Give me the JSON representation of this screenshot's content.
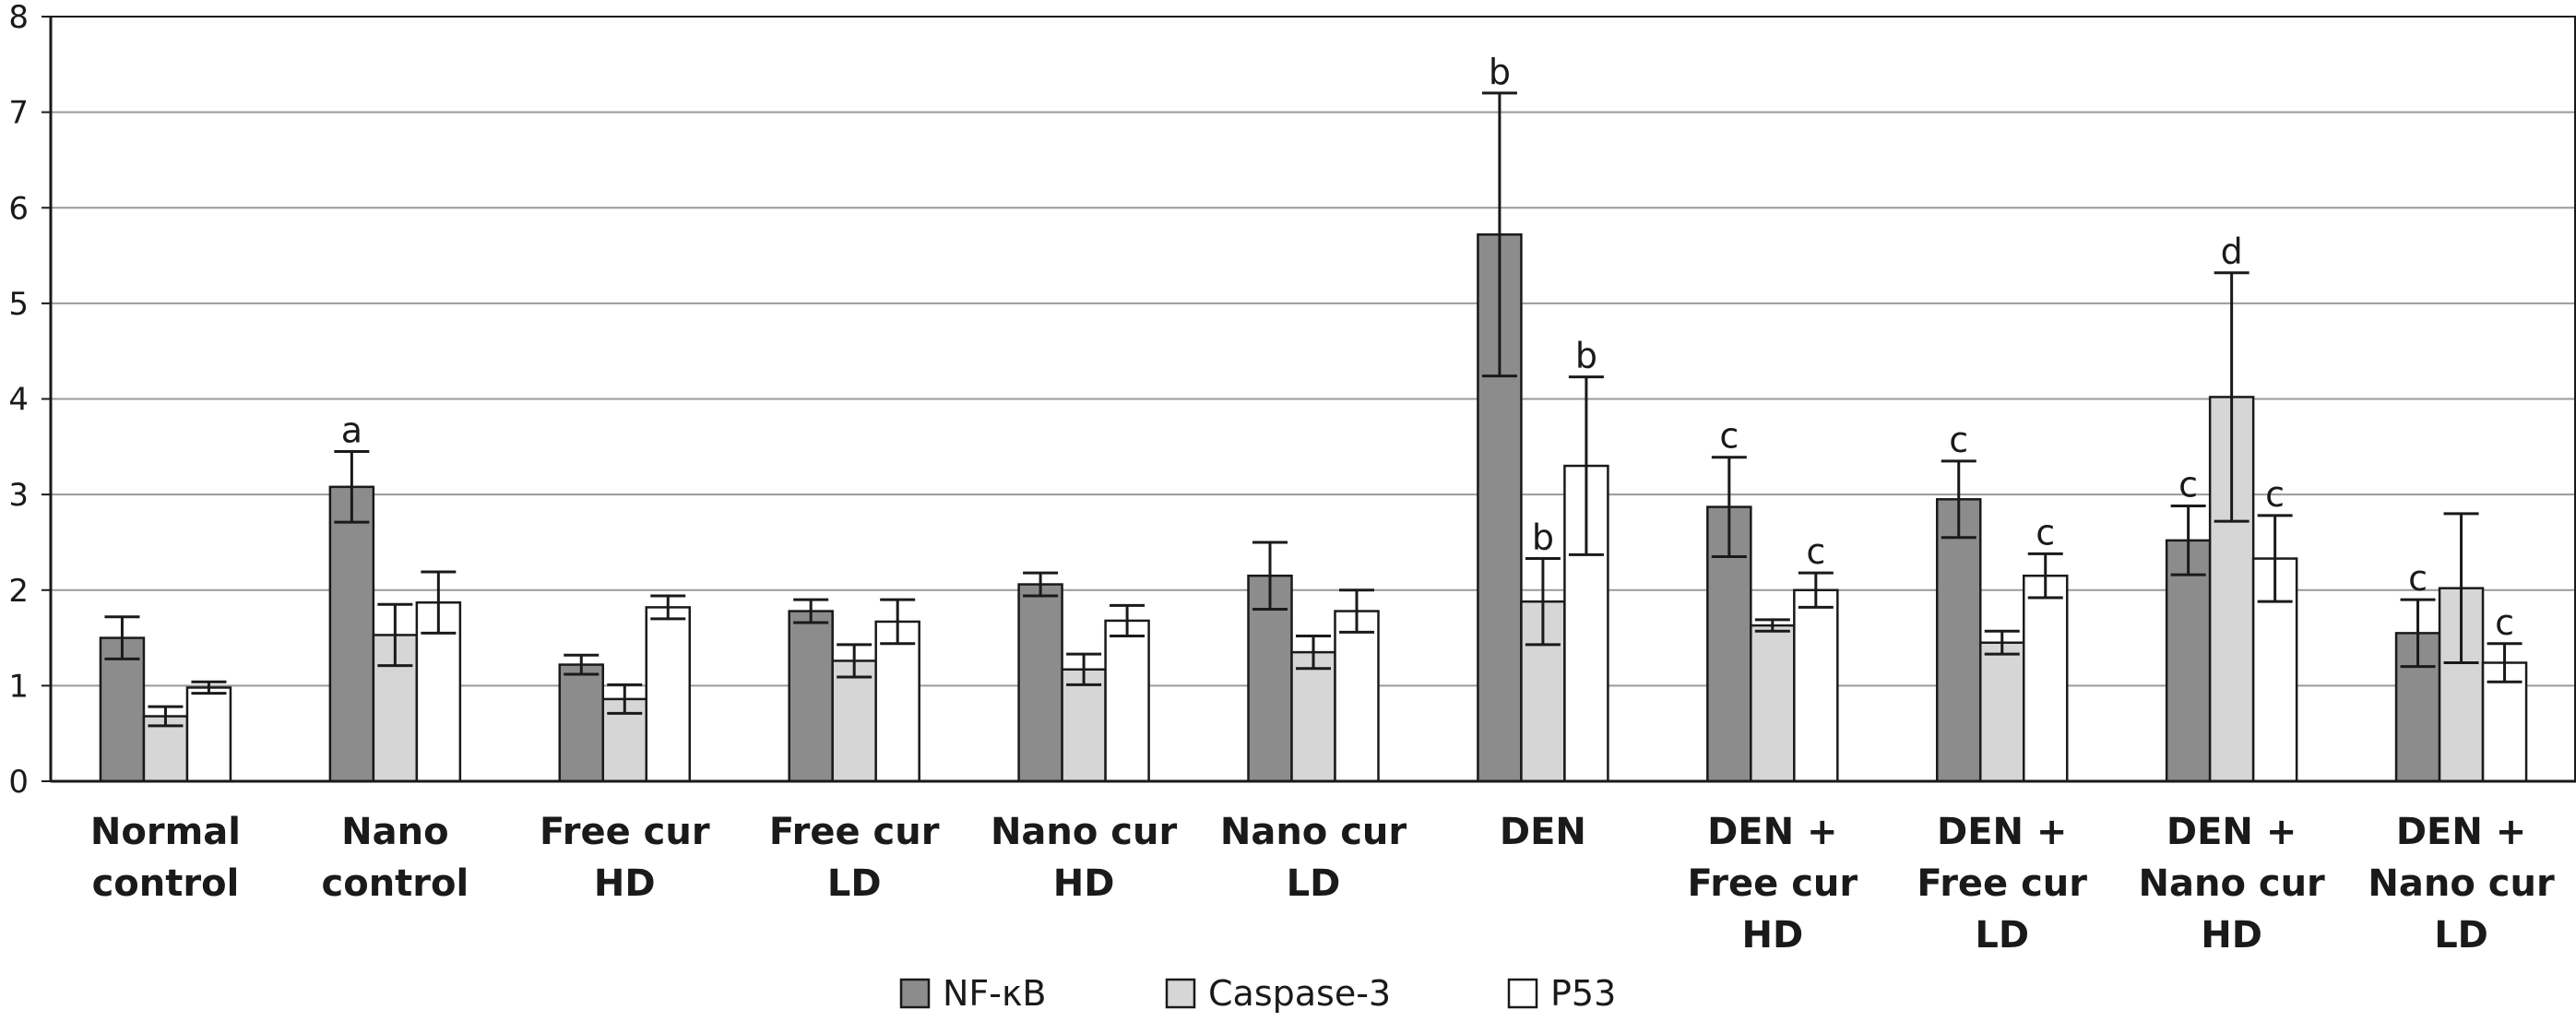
{
  "chart_data": {
    "type": "bar",
    "categories": [
      [
        "Normal",
        "control"
      ],
      [
        "Nano",
        "control"
      ],
      [
        "Free cur",
        "HD"
      ],
      [
        "Free cur",
        "LD"
      ],
      [
        "Nano cur",
        "HD"
      ],
      [
        "Nano cur",
        "LD"
      ],
      [
        "DEN"
      ],
      [
        "DEN +",
        "Free cur",
        "HD"
      ],
      [
        "DEN +",
        "Free cur",
        "LD"
      ],
      [
        "DEN +",
        "Nano cur",
        "HD"
      ],
      [
        "DEN +",
        "Nano cur",
        "LD"
      ]
    ],
    "series": [
      {
        "name": "NF-κB",
        "color": "#8c8c8c",
        "values": [
          1.5,
          3.08,
          1.22,
          1.78,
          2.06,
          2.15,
          5.72,
          2.87,
          2.95,
          2.52,
          1.55
        ],
        "errors": [
          0.22,
          0.37,
          0.1,
          0.12,
          0.12,
          0.35,
          1.48,
          0.52,
          0.4,
          0.36,
          0.35
        ],
        "labels": [
          "",
          "a",
          "",
          "",
          "",
          "",
          "b",
          "c",
          "c",
          "c",
          "c"
        ]
      },
      {
        "name": "Caspase-3",
        "color": "#d6d6d6",
        "values": [
          0.68,
          1.53,
          0.86,
          1.26,
          1.17,
          1.35,
          1.88,
          1.63,
          1.45,
          4.02,
          2.02
        ],
        "errors": [
          0.1,
          0.32,
          0.15,
          0.17,
          0.16,
          0.17,
          0.45,
          0.06,
          0.12,
          1.3,
          0.78
        ],
        "labels": [
          "",
          "",
          "",
          "",
          "",
          "",
          "b",
          "",
          "",
          "d",
          ""
        ]
      },
      {
        "name": "P53",
        "color": "#ffffff",
        "values": [
          0.98,
          1.87,
          1.82,
          1.67,
          1.68,
          1.78,
          3.3,
          2.0,
          2.15,
          2.33,
          1.24
        ],
        "errors": [
          0.06,
          0.32,
          0.12,
          0.23,
          0.16,
          0.22,
          0.93,
          0.18,
          0.23,
          0.45,
          0.2
        ],
        "labels": [
          "",
          "",
          "",
          "",
          "",
          "",
          "b",
          "c",
          "c",
          "c",
          "c"
        ]
      }
    ],
    "ylim": [
      0,
      8
    ],
    "yticks": [
      "0",
      "1",
      "2",
      "3",
      "4",
      "5",
      "6",
      "7",
      "8"
    ],
    "grid": true,
    "legend_position": "bottom-center",
    "title": "",
    "xlabel": "",
    "ylabel": ""
  }
}
